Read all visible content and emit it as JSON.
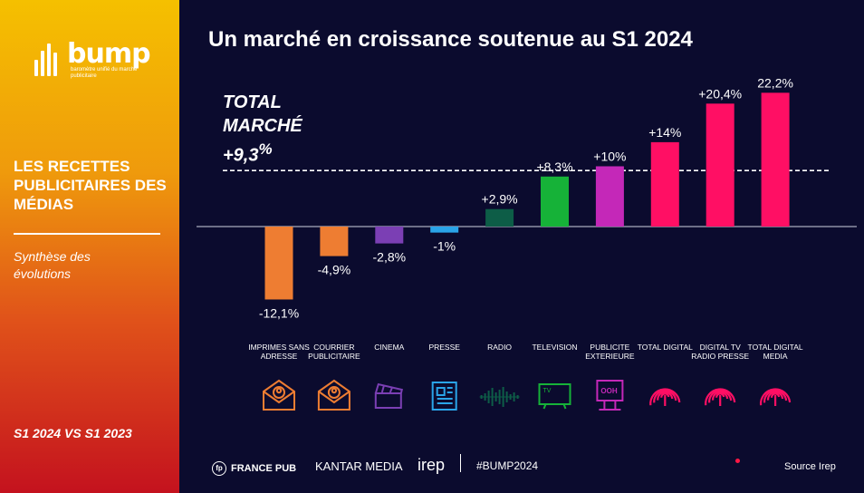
{
  "brand": {
    "logo_text": "bump",
    "logo_sub": "baromètre unifié du marché publicitaire"
  },
  "sidebar": {
    "headline": "LES RECETTES PUBLICITAIRES DES MÉDIAS",
    "subtitle": "Synthèse des évolutions",
    "period": "S1 2024 VS S1 2023"
  },
  "title": "Un marché en croissance soutenue au S1 2024",
  "total_market": {
    "line1": "TOTAL",
    "line2": "MARCHÉ",
    "value": "+9,3",
    "unit": "%"
  },
  "chart_data": {
    "type": "bar",
    "categories": [
      "IMPRIMES SANS ADRESSE",
      "COURRIER PUBLICITAIRE",
      "CINEMA",
      "PRESSE",
      "RADIO",
      "TELEVISION",
      "PUBLICITE EXTERIEURE",
      "TOTAL DIGITAL",
      "DIGITAL TV RADIO PRESSE",
      "TOTAL DIGITAL MEDIA"
    ],
    "values": [
      -12.1,
      -4.9,
      -2.8,
      -1,
      2.9,
      8.3,
      10,
      14,
      20.4,
      22.2
    ],
    "labels": [
      "-12,1%",
      "-4,9%",
      "-2,8%",
      "-1%",
      "+2,9%",
      "+8,3%",
      "+10%",
      "+14%",
      "+20,4%",
      "22,2%"
    ],
    "colors": [
      "#ee7d32",
      "#ee7d32",
      "#7b3fb4",
      "#2aa4e8",
      "#0d5d47",
      "#16b238",
      "#c428b8",
      "#ff0f64",
      "#ff0f64",
      "#ff0f64"
    ],
    "reference_line": 9.3,
    "ylim": [
      -14,
      24
    ],
    "icons": [
      "envelope-person-icon",
      "envelope-person-icon",
      "clapperboard-icon",
      "newspaper-icon",
      "soundwave-icon",
      "tv-icon",
      "billboard-icon",
      "fingerprint-icon",
      "fingerprint-icon",
      "fingerprint-icon"
    ]
  },
  "footer": {
    "francepub": "FRANCE PUB",
    "kantar": "KANTAR MEDIA",
    "irep": "irep",
    "hashtag": "#BUMP2024",
    "source": "Source Irep"
  }
}
